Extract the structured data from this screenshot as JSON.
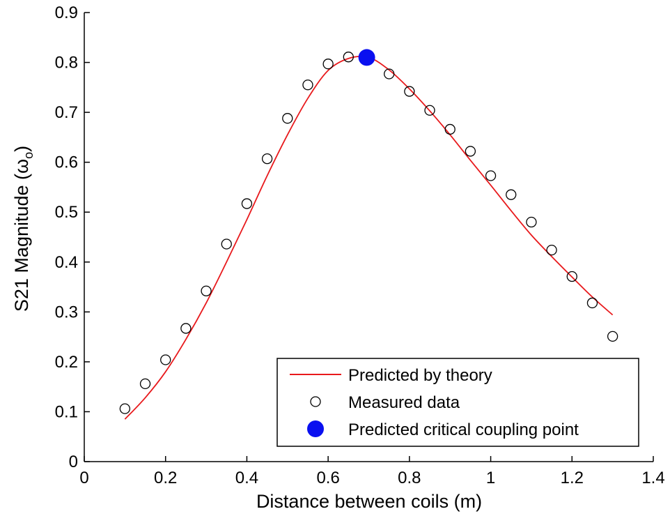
{
  "chart_data": {
    "type": "scatter",
    "title": "",
    "xlabel": "Distance between coils (m)",
    "ylabel": "S21 Magnitude (ω",
    "ylabel_subscript": "o",
    "ylabel_suffix": ")",
    "xlim": [
      0,
      1.4
    ],
    "ylim": [
      0,
      0.9
    ],
    "x_ticks": [
      0,
      0.2,
      0.4,
      0.6,
      0.8,
      1,
      1.2,
      1.4
    ],
    "x_tick_labels": [
      "0",
      "0.2",
      "0.4",
      "0.6",
      "0.8",
      "1",
      "1.2",
      "1.4"
    ],
    "y_ticks": [
      0,
      0.1,
      0.2,
      0.3,
      0.4,
      0.5,
      0.6,
      0.7,
      0.8,
      0.9
    ],
    "y_tick_labels": [
      "0",
      "0.1",
      "0.2",
      "0.3",
      "0.4",
      "0.5",
      "0.6",
      "0.7",
      "0.8",
      "0.9"
    ],
    "grid": false,
    "legend_position": "bottom-right",
    "series": [
      {
        "name": "Predicted by theory",
        "kind": "line",
        "color": "#e8191c",
        "x": [
          0.1,
          0.15,
          0.2,
          0.25,
          0.3,
          0.35,
          0.4,
          0.45,
          0.5,
          0.55,
          0.6,
          0.65,
          0.7,
          0.75,
          0.8,
          0.85,
          0.9,
          0.95,
          1.0,
          1.05,
          1.1,
          1.15,
          1.2,
          1.25,
          1.3
        ],
        "y": [
          0.085,
          0.128,
          0.18,
          0.245,
          0.318,
          0.4,
          0.485,
          0.573,
          0.655,
          0.728,
          0.784,
          0.808,
          0.81,
          0.785,
          0.747,
          0.703,
          0.655,
          0.604,
          0.554,
          0.503,
          0.454,
          0.411,
          0.37,
          0.33,
          0.294
        ]
      },
      {
        "name": "Measured data",
        "kind": "scatter",
        "marker": "open-circle",
        "color": "#000000",
        "x": [
          0.1,
          0.15,
          0.2,
          0.25,
          0.3,
          0.35,
          0.4,
          0.45,
          0.5,
          0.55,
          0.6,
          0.65,
          0.75,
          0.8,
          0.85,
          0.9,
          0.95,
          1.0,
          1.05,
          1.1,
          1.15,
          1.2,
          1.25,
          1.3
        ],
        "y": [
          0.106,
          0.156,
          0.204,
          0.267,
          0.342,
          0.436,
          0.517,
          0.607,
          0.688,
          0.755,
          0.797,
          0.811,
          0.777,
          0.742,
          0.704,
          0.666,
          0.622,
          0.573,
          0.535,
          0.48,
          0.424,
          0.371,
          0.318,
          0.251
        ]
      },
      {
        "name": "Predicted critical coupling point",
        "kind": "scatter",
        "marker": "filled-circle",
        "color": "#0a10f0",
        "x": [
          0.695
        ],
        "y": [
          0.81
        ]
      }
    ]
  }
}
